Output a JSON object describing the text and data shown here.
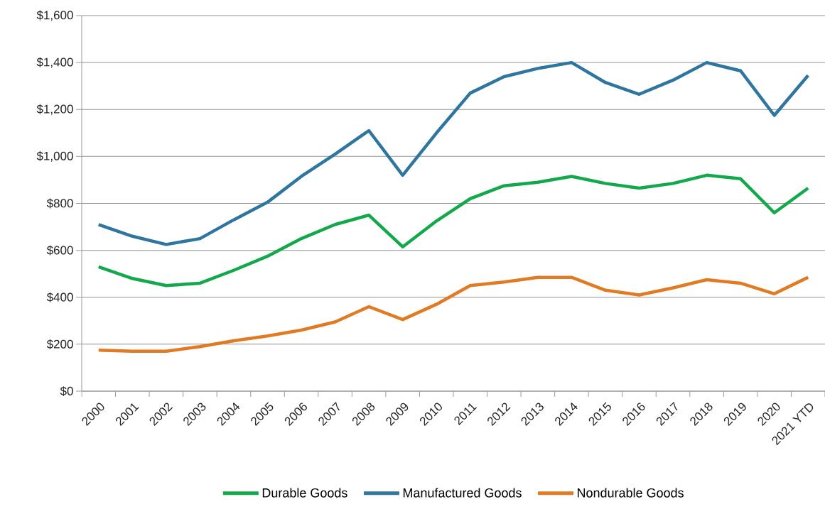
{
  "chart_data": {
    "type": "line",
    "categories": [
      "2000",
      "2001",
      "2002",
      "2003",
      "2004",
      "2005",
      "2006",
      "2007",
      "2008",
      "2009",
      "2010",
      "2011",
      "2012",
      "2013",
      "2014",
      "2015",
      "2016",
      "2017",
      "2018",
      "2019",
      "2020",
      "2021 YTD"
    ],
    "series": [
      {
        "name": "Durable Goods",
        "color": "#13a84b",
        "values": [
          530,
          480,
          450,
          460,
          515,
          575,
          650,
          710,
          750,
          615,
          725,
          820,
          875,
          890,
          915,
          885,
          865,
          885,
          920,
          905,
          760,
          865
        ]
      },
      {
        "name": "Manufactured Goods",
        "color": "#2e75a0",
        "values": [
          710,
          660,
          625,
          650,
          730,
          805,
          915,
          1010,
          1110,
          920,
          1100,
          1270,
          1340,
          1375,
          1400,
          1315,
          1265,
          1325,
          1400,
          1365,
          1175,
          1345
        ]
      },
      {
        "name": "Nondurable Goods",
        "color": "#e07b23",
        "values": [
          175,
          170,
          170,
          190,
          215,
          235,
          260,
          295,
          360,
          305,
          370,
          450,
          465,
          485,
          485,
          430,
          410,
          440,
          475,
          460,
          415,
          485
        ]
      }
    ],
    "ylim": [
      0,
      1600
    ],
    "yticks": [
      {
        "value": 0,
        "label": "$0"
      },
      {
        "value": 200,
        "label": "$200"
      },
      {
        "value": 400,
        "label": "$400"
      },
      {
        "value": 600,
        "label": "$600"
      },
      {
        "value": 800,
        "label": "$800"
      },
      {
        "value": 1000,
        "label": "$1,000"
      },
      {
        "value": 1200,
        "label": "$1,200"
      },
      {
        "value": 1400,
        "label": "$1,400"
      },
      {
        "value": 1600,
        "label": "$1,600"
      }
    ],
    "grid": "y",
    "legend": "bottom",
    "line_style": "solid",
    "marker": "none"
  }
}
